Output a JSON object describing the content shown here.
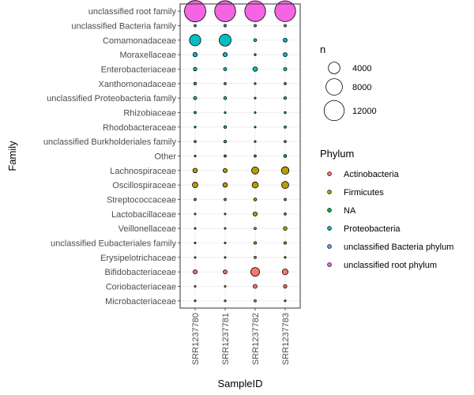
{
  "chart_data": {
    "type": "scatter",
    "xlabel": "SampleID",
    "ylabel": "Family",
    "samples": [
      "SRR1237780",
      "SRR1237781",
      "SRR1237782",
      "SRR1237783"
    ],
    "families": [
      "unclassified root family",
      "unclassified Bacteria family",
      "Comamonadaceae",
      "Moraxellaceae",
      "Enterobacteriaceae",
      "Xanthomonadaceae",
      "unclassified Proteobacteria family",
      "Rhizobiaceae",
      "Rhodobacteraceae",
      "unclassified Burkholderiales family",
      "Other",
      "Lachnospiraceae",
      "Oscillospiraceae",
      "Streptococcaceae",
      "Lactobacillaceae",
      "Veillonellaceae",
      "unclassified Eubacteriales family",
      "Erysipelotrichaceae",
      "Bifidobacteriaceae",
      "Coriobacteriaceae",
      "Microbacteriaceae"
    ],
    "family_phylum": [
      "unclassified root phylum",
      "unclassified Bacteria phylum",
      "Proteobacteria",
      "Proteobacteria",
      "Proteobacteria",
      "Proteobacteria",
      "Proteobacteria",
      "Proteobacteria",
      "Proteobacteria",
      "Proteobacteria",
      "NA",
      "Firmicutes",
      "Firmicutes",
      "Firmicutes",
      "Firmicutes",
      "Firmicutes",
      "Firmicutes",
      "Firmicutes",
      "Actinobacteria",
      "Actinobacteria",
      "Actinobacteria"
    ],
    "abundance": [
      [
        13500,
        13000,
        12800,
        12900
      ],
      [
        150,
        180,
        160,
        170
      ],
      [
        3800,
        4200,
        250,
        450
      ],
      [
        550,
        500,
        120,
        450
      ],
      [
        350,
        300,
        600,
        300
      ],
      [
        200,
        150,
        100,
        150
      ],
      [
        300,
        250,
        100,
        200
      ],
      [
        150,
        100,
        80,
        120
      ],
      [
        100,
        200,
        80,
        150
      ],
      [
        150,
        200,
        100,
        150
      ],
      [
        100,
        150,
        150,
        250
      ],
      [
        600,
        500,
        1500,
        1700
      ],
      [
        900,
        600,
        1100,
        1500
      ],
      [
        150,
        150,
        250,
        150
      ],
      [
        80,
        80,
        500,
        150
      ],
      [
        30,
        30,
        150,
        400
      ],
      [
        50,
        50,
        200,
        200
      ],
      [
        50,
        50,
        150,
        100
      ],
      [
        500,
        450,
        2300,
        1000
      ],
      [
        50,
        50,
        450,
        350
      ],
      [
        100,
        100,
        150,
        100
      ]
    ],
    "size_legend": {
      "title": "n",
      "breaks": [
        4000,
        8000,
        12000
      ]
    },
    "color_legend": {
      "title": "Phylum",
      "entries": [
        {
          "name": "Actinobacteria",
          "color": "#F8766D"
        },
        {
          "name": "Firmicutes",
          "color": "#B79F00"
        },
        {
          "name": "NA",
          "color": "#00BA38"
        },
        {
          "name": "Proteobacteria",
          "color": "#00BFC4"
        },
        {
          "name": "unclassified Bacteria phylum",
          "color": "#619CFF"
        },
        {
          "name": "unclassified root phylum",
          "color": "#F564E3"
        }
      ]
    },
    "grid": true
  }
}
